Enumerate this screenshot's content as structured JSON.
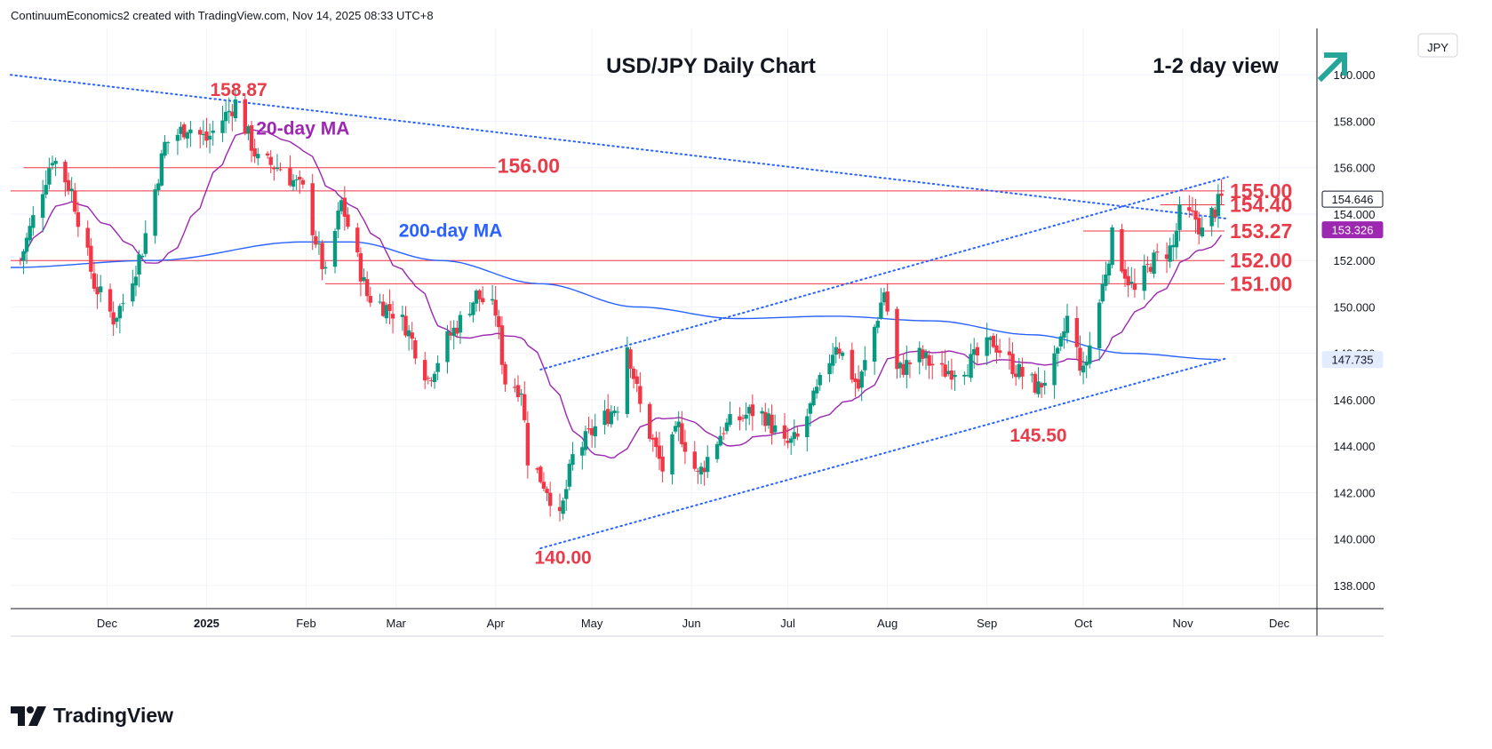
{
  "header": {
    "attribution": "ContinuumEconomics2 created with TradingView.com, Nov 14, 2025 08:33 UTC+8"
  },
  "branding": {
    "name": "TradingView"
  },
  "chart_data": {
    "type": "candlestick",
    "title": "USD/JPY Daily Chart",
    "subtitle": "1-2 day view",
    "view_arrow": "up",
    "currency_label": "JPY",
    "ylim": [
      137,
      162
    ],
    "y_ticks": [
      {
        "value": 160,
        "label": "160.000"
      },
      {
        "value": 158,
        "label": "158.000"
      },
      {
        "value": 156,
        "label": "156.000"
      },
      {
        "value": 154,
        "label": "154.000"
      },
      {
        "value": 152,
        "label": "152.000"
      },
      {
        "value": 150,
        "label": "150.000"
      },
      {
        "value": 148,
        "label": "148.000"
      },
      {
        "value": 146,
        "label": "146.000"
      },
      {
        "value": 144,
        "label": "144.000"
      },
      {
        "value": 142,
        "label": "142.000"
      },
      {
        "value": 140,
        "label": "140.000"
      },
      {
        "value": 138,
        "label": "138.000"
      }
    ],
    "x_ticks": [
      {
        "date": "2024-12-01",
        "label": "Dec",
        "bold": false
      },
      {
        "date": "2025-01-01",
        "label": "2025",
        "bold": true
      },
      {
        "date": "2025-02-01",
        "label": "Feb",
        "bold": false
      },
      {
        "date": "2025-03-01",
        "label": "Mar",
        "bold": false
      },
      {
        "date": "2025-04-01",
        "label": "Apr",
        "bold": false
      },
      {
        "date": "2025-05-01",
        "label": "May",
        "bold": false
      },
      {
        "date": "2025-06-01",
        "label": "Jun",
        "bold": false
      },
      {
        "date": "2025-07-01",
        "label": "Jul",
        "bold": false
      },
      {
        "date": "2025-08-01",
        "label": "Aug",
        "bold": false
      },
      {
        "date": "2025-09-01",
        "label": "Sep",
        "bold": false
      },
      {
        "date": "2025-10-01",
        "label": "Oct",
        "bold": false
      },
      {
        "date": "2025-11-01",
        "label": "Nov",
        "bold": false
      },
      {
        "date": "2025-12-01",
        "label": "Dec",
        "bold": false
      }
    ],
    "price_anchors": [
      [
        "2024-11-04",
        152.0
      ],
      [
        "2024-11-14",
        156.5
      ],
      [
        "2024-11-20",
        155.0
      ],
      [
        "2024-11-27",
        151.0
      ],
      [
        "2024-12-03",
        149.5
      ],
      [
        "2024-12-06",
        150.2
      ],
      [
        "2024-12-12",
        152.5
      ],
      [
        "2024-12-19",
        157.0
      ],
      [
        "2024-12-26",
        157.8
      ],
      [
        "2025-01-01",
        157.2
      ],
      [
        "2025-01-10",
        158.8
      ],
      [
        "2025-01-17",
        156.3
      ],
      [
        "2025-01-24",
        156.0
      ],
      [
        "2025-01-31",
        155.0
      ],
      [
        "2025-02-07",
        151.3
      ],
      [
        "2025-02-12",
        154.5
      ],
      [
        "2025-02-20",
        150.5
      ],
      [
        "2025-02-28",
        149.8
      ],
      [
        "2025-03-04",
        149.2
      ],
      [
        "2025-03-11",
        146.9
      ],
      [
        "2025-03-17",
        148.6
      ],
      [
        "2025-03-21",
        149.4
      ],
      [
        "2025-03-26",
        150.5
      ],
      [
        "2025-04-01",
        149.8
      ],
      [
        "2025-04-04",
        146.8
      ],
      [
        "2025-04-09",
        146.5
      ],
      [
        "2025-04-11",
        143.5
      ],
      [
        "2025-04-17",
        142.2
      ],
      [
        "2025-04-21",
        140.8
      ],
      [
        "2025-04-25",
        143.5
      ],
      [
        "2025-05-02",
        144.8
      ],
      [
        "2025-05-09",
        145.8
      ],
      [
        "2025-05-12",
        148.4
      ],
      [
        "2025-05-16",
        145.7
      ],
      [
        "2025-05-23",
        143.0
      ],
      [
        "2025-05-28",
        144.8
      ],
      [
        "2025-06-03",
        142.7
      ],
      [
        "2025-06-11",
        144.8
      ],
      [
        "2025-06-20",
        145.5
      ],
      [
        "2025-06-24",
        145.3
      ],
      [
        "2025-06-30",
        144.0
      ],
      [
        "2025-07-04",
        144.3
      ],
      [
        "2025-07-10",
        146.3
      ],
      [
        "2025-07-16",
        148.5
      ],
      [
        "2025-07-23",
        146.5
      ],
      [
        "2025-07-31",
        150.7
      ],
      [
        "2025-08-04",
        147.2
      ],
      [
        "2025-08-11",
        147.9
      ],
      [
        "2025-08-18",
        147.2
      ],
      [
        "2025-08-26",
        147.5
      ],
      [
        "2025-09-03",
        148.5
      ],
      [
        "2025-09-10",
        147.3
      ],
      [
        "2025-09-17",
        146.5
      ],
      [
        "2025-09-23",
        147.8
      ],
      [
        "2025-09-26",
        149.5
      ],
      [
        "2025-10-01",
        147.1
      ],
      [
        "2025-10-06",
        150.2
      ],
      [
        "2025-10-10",
        153.0
      ],
      [
        "2025-10-14",
        151.5
      ],
      [
        "2025-10-17",
        150.6
      ],
      [
        "2025-10-22",
        151.9
      ],
      [
        "2025-10-29",
        152.6
      ],
      [
        "2025-10-31",
        154.0
      ],
      [
        "2025-11-05",
        153.8
      ],
      [
        "2025-11-07",
        153.2
      ],
      [
        "2025-11-10",
        154.0
      ],
      [
        "2025-11-13",
        154.646
      ]
    ],
    "series": [
      {
        "name": "20-day MA",
        "label": "20-day MA",
        "color": "#9c27b0"
      },
      {
        "name": "200-day MA",
        "label": "200-day MA",
        "color": "#2962ff"
      }
    ],
    "ma200_anchors": [
      [
        "2024-11-01",
        151.7
      ],
      [
        "2024-12-15",
        152.0
      ],
      [
        "2025-01-31",
        152.8
      ],
      [
        "2025-02-15",
        152.8
      ],
      [
        "2025-03-15",
        152.0
      ],
      [
        "2025-04-15",
        151.0
      ],
      [
        "2025-05-15",
        150.0
      ],
      [
        "2025-06-15",
        149.5
      ],
      [
        "2025-07-15",
        149.6
      ],
      [
        "2025-08-15",
        149.4
      ],
      [
        "2025-09-15",
        148.8
      ],
      [
        "2025-10-15",
        148.0
      ],
      [
        "2025-11-13",
        147.735
      ]
    ],
    "horizontal_levels": [
      {
        "value": 156.0,
        "label": "156.00",
        "from": "2024-11-05",
        "to": "2025-04-01"
      },
      {
        "value": 155.0,
        "label": "155.00",
        "from": "2024-11-01",
        "to": "2025-11-14"
      },
      {
        "value": 154.4,
        "label": "154.40",
        "from": "2025-10-25",
        "to": "2025-11-14"
      },
      {
        "value": 153.27,
        "label": "153.27",
        "from": "2025-10-01",
        "to": "2025-11-14"
      },
      {
        "value": 152.0,
        "label": "152.00",
        "from": "2024-11-01",
        "to": "2025-11-14"
      },
      {
        "value": 151.0,
        "label": "151.00",
        "from": "2025-02-07",
        "to": "2025-11-14"
      }
    ],
    "trendlines": [
      {
        "from": [
          "2024-11-01",
          160.0
        ],
        "to": [
          "2025-11-15",
          153.8
        ]
      },
      {
        "from": [
          "2025-04-15",
          147.3
        ],
        "to": [
          "2025-11-15",
          155.6
        ]
      },
      {
        "from": [
          "2025-04-15",
          139.6
        ],
        "to": [
          "2025-11-15",
          147.8
        ]
      }
    ],
    "annotations": [
      {
        "label": "158.87",
        "date": "2025-01-11",
        "value": 158.87
      },
      {
        "label": "20-day MA",
        "date": "2025-01-31",
        "value": 157.2
      },
      {
        "label": "200-day MA",
        "date": "2025-03-18",
        "value": 152.8
      },
      {
        "label": "140.00",
        "date": "2025-04-22",
        "value": 140.0
      },
      {
        "label": "145.50",
        "date": "2025-09-17",
        "value": 145.5
      }
    ],
    "price_tags": [
      {
        "label": "154.646",
        "value": 154.646,
        "style": "current"
      },
      {
        "label": "153.326",
        "value": 153.326,
        "style": "ma20"
      },
      {
        "label": "147.735",
        "value": 147.735,
        "style": "ma200"
      }
    ],
    "colors": {
      "up": "#089981",
      "down": "#f23645",
      "levels": "#f23645",
      "level_text": "#e83c4a",
      "trend": "#2962ff",
      "ma20": "#9c27b0",
      "ma200": "#2962ff",
      "arrow": "#26a69a"
    },
    "grid": true,
    "legend": "inline labels"
  }
}
